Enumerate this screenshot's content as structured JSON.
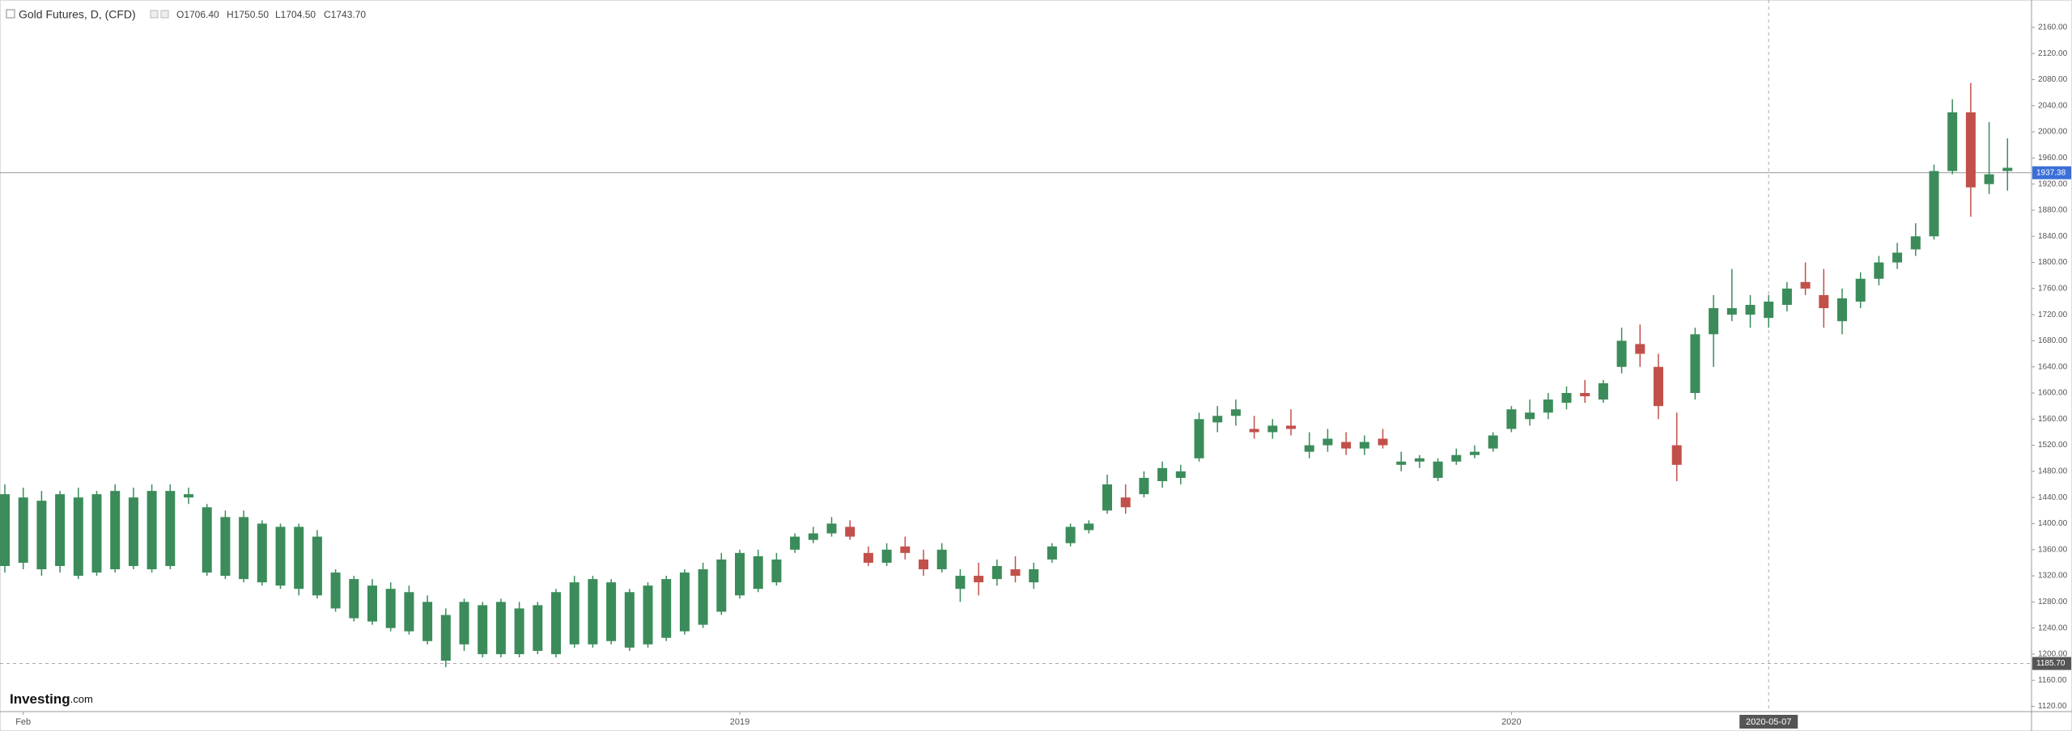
{
  "chart_data": {
    "type": "candlestick",
    "title": "Gold Futures, D, (CFD)",
    "ohlc_labels": [
      "O1706.40",
      "H1750.50",
      "L1704.50",
      "C1743.70"
    ],
    "logo": {
      "brand": "Investing",
      "suffix": ".com"
    },
    "up_color": "#3b8c5a",
    "down_color": "#c2504a",
    "categories": [
      null,
      "Feb",
      null,
      null,
      null,
      null,
      null,
      null,
      null,
      null,
      null,
      null,
      null,
      null,
      null,
      null,
      null,
      null,
      null,
      null,
      null,
      null,
      null,
      null,
      null,
      null,
      null,
      null,
      null,
      null,
      null,
      null,
      null,
      null,
      null,
      null,
      null,
      null,
      null,
      null,
      "2019",
      null,
      null,
      null,
      null,
      null,
      null,
      null,
      null,
      null,
      null,
      null,
      null,
      null,
      null,
      null,
      null,
      null,
      null,
      null,
      null,
      null,
      null,
      null,
      null,
      null,
      null,
      null,
      null,
      null,
      null,
      null,
      null,
      null,
      null,
      null,
      null,
      null,
      null,
      null,
      null,
      null,
      "2020",
      null,
      null,
      null,
      null,
      null,
      null,
      null,
      null,
      null,
      null,
      null,
      null,
      null,
      "2020-05-07",
      null,
      null,
      null,
      null,
      null,
      null,
      null,
      null,
      null,
      null,
      null,
      null,
      null
    ],
    "open": [
      1335,
      1340,
      1330,
      1335,
      1320,
      1325,
      1330,
      1335,
      1330,
      1335,
      1440,
      1325,
      1320,
      1315,
      1310,
      1305,
      1300,
      1290,
      1270,
      1255,
      1250,
      1240,
      1235,
      1220,
      1190,
      1215,
      1200,
      1200,
      1200,
      1205,
      1200,
      1215,
      1215,
      1220,
      1210,
      1215,
      1225,
      1235,
      1245,
      1265,
      1290,
      1300,
      1310,
      1360,
      1375,
      1385,
      1395,
      1355,
      1340,
      1365,
      1345,
      1330,
      1300,
      1320,
      1315,
      1330,
      1310,
      1345,
      1370,
      1390,
      1420,
      1440,
      1445,
      1465,
      1470,
      1500,
      1555,
      1565,
      1545,
      1540,
      1550,
      1510,
      1520,
      1525,
      1515,
      1530,
      1490,
      1495,
      1470,
      1495,
      1505,
      1515,
      1545,
      1560,
      1570,
      1585,
      1600,
      1590,
      1640,
      1675,
      1640,
      1520,
      1600,
      1690,
      1720,
      1720,
      1715,
      1735,
      1770,
      1750,
      1710,
      1740,
      1775,
      1800,
      1820,
      1840,
      1940,
      2030,
      1920,
      1940
    ],
    "high": [
      1460,
      1455,
      1450,
      1450,
      1455,
      1450,
      1460,
      1455,
      1460,
      1460,
      1455,
      1430,
      1420,
      1420,
      1405,
      1400,
      1400,
      1390,
      1330,
      1320,
      1315,
      1310,
      1305,
      1290,
      1270,
      1285,
      1280,
      1285,
      1280,
      1280,
      1300,
      1320,
      1320,
      1315,
      1300,
      1310,
      1320,
      1330,
      1340,
      1355,
      1360,
      1360,
      1355,
      1385,
      1395,
      1410,
      1405,
      1365,
      1370,
      1380,
      1360,
      1370,
      1330,
      1340,
      1345,
      1350,
      1340,
      1370,
      1400,
      1405,
      1475,
      1460,
      1480,
      1495,
      1490,
      1570,
      1580,
      1590,
      1565,
      1560,
      1575,
      1540,
      1545,
      1540,
      1535,
      1545,
      1510,
      1505,
      1500,
      1515,
      1520,
      1540,
      1580,
      1590,
      1600,
      1610,
      1620,
      1620,
      1700,
      1705,
      1660,
      1570,
      1700,
      1750,
      1790,
      1750,
      1750,
      1770,
      1800,
      1790,
      1760,
      1785,
      1810,
      1830,
      1860,
      1950,
      2050,
      2075,
      2015,
      1990
    ],
    "low": [
      1325,
      1330,
      1320,
      1325,
      1315,
      1320,
      1325,
      1330,
      1325,
      1330,
      1430,
      1320,
      1315,
      1310,
      1305,
      1300,
      1290,
      1285,
      1265,
      1250,
      1245,
      1235,
      1230,
      1215,
      1180,
      1205,
      1195,
      1195,
      1195,
      1200,
      1195,
      1210,
      1210,
      1215,
      1205,
      1210,
      1220,
      1230,
      1240,
      1260,
      1285,
      1295,
      1305,
      1355,
      1370,
      1380,
      1375,
      1335,
      1335,
      1345,
      1320,
      1325,
      1280,
      1290,
      1305,
      1310,
      1300,
      1340,
      1365,
      1385,
      1415,
      1415,
      1440,
      1455,
      1460,
      1495,
      1540,
      1550,
      1530,
      1530,
      1535,
      1500,
      1510,
      1505,
      1505,
      1515,
      1480,
      1485,
      1465,
      1490,
      1500,
      1510,
      1540,
      1550,
      1560,
      1575,
      1585,
      1585,
      1630,
      1640,
      1560,
      1465,
      1590,
      1640,
      1710,
      1700,
      1700,
      1725,
      1750,
      1700,
      1690,
      1730,
      1765,
      1790,
      1810,
      1835,
      1935,
      1870,
      1905,
      1910
    ],
    "close": [
      1445,
      1440,
      1435,
      1445,
      1440,
      1445,
      1450,
      1440,
      1450,
      1450,
      1445,
      1425,
      1410,
      1410,
      1400,
      1395,
      1395,
      1380,
      1325,
      1315,
      1305,
      1300,
      1295,
      1280,
      1260,
      1280,
      1275,
      1280,
      1270,
      1275,
      1295,
      1310,
      1315,
      1310,
      1295,
      1305,
      1315,
      1325,
      1330,
      1345,
      1355,
      1350,
      1345,
      1380,
      1385,
      1400,
      1380,
      1340,
      1360,
      1355,
      1330,
      1360,
      1320,
      1310,
      1335,
      1320,
      1330,
      1365,
      1395,
      1400,
      1460,
      1425,
      1470,
      1485,
      1480,
      1560,
      1565,
      1575,
      1540,
      1550,
      1545,
      1520,
      1530,
      1515,
      1525,
      1520,
      1495,
      1500,
      1495,
      1505,
      1510,
      1535,
      1575,
      1570,
      1590,
      1600,
      1595,
      1615,
      1680,
      1660,
      1580,
      1490,
      1690,
      1730,
      1730,
      1735,
      1740,
      1760,
      1760,
      1730,
      1745,
      1775,
      1800,
      1815,
      1840,
      1940,
      2030,
      1915,
      1935,
      1945
    ],
    "ylim": [
      1112,
      2202
    ],
    "yticks": [
      {
        "value": 1120,
        "label": "1120.00"
      },
      {
        "value": 1160,
        "label": "1160.00"
      },
      {
        "value": 1200,
        "label": "1200.00"
      },
      {
        "value": 1240,
        "label": "1240.00"
      },
      {
        "value": 1280,
        "label": "1280.00"
      },
      {
        "value": 1320,
        "label": "1320.00"
      },
      {
        "value": 1360,
        "label": "1360.00"
      },
      {
        "value": 1400,
        "label": "1400.00"
      },
      {
        "value": 1440,
        "label": "1440.00"
      },
      {
        "value": 1480,
        "label": "1480.00"
      },
      {
        "value": 1520,
        "label": "1520.00"
      },
      {
        "value": 1560,
        "label": "1560.00"
      },
      {
        "value": 1600,
        "label": "1600.00"
      },
      {
        "value": 1640,
        "label": "1640.00"
      },
      {
        "value": 1680,
        "label": "1680.00"
      },
      {
        "value": 1720,
        "label": "1720.00"
      },
      {
        "value": 1760,
        "label": "1760.00"
      },
      {
        "value": 1800,
        "label": "1800.00"
      },
      {
        "value": 1840,
        "label": "1840.00"
      },
      {
        "value": 1880,
        "label": "1880.00"
      },
      {
        "value": 1920,
        "label": "1920.00"
      },
      {
        "value": 1960,
        "label": "1960.00"
      },
      {
        "value": 2000,
        "label": "2000.00"
      },
      {
        "value": 2040,
        "label": "2040.00"
      },
      {
        "value": 2080,
        "label": "2080.00"
      },
      {
        "value": 2120,
        "label": "2120.00"
      },
      {
        "value": 2160,
        "label": "2160.00"
      }
    ],
    "last_price": {
      "value": 1937.38,
      "label": "1937.38"
    },
    "crosshair": {
      "x": "2020-05-07",
      "y": {
        "value": 1185.7,
        "label": "1185.70"
      }
    }
  }
}
